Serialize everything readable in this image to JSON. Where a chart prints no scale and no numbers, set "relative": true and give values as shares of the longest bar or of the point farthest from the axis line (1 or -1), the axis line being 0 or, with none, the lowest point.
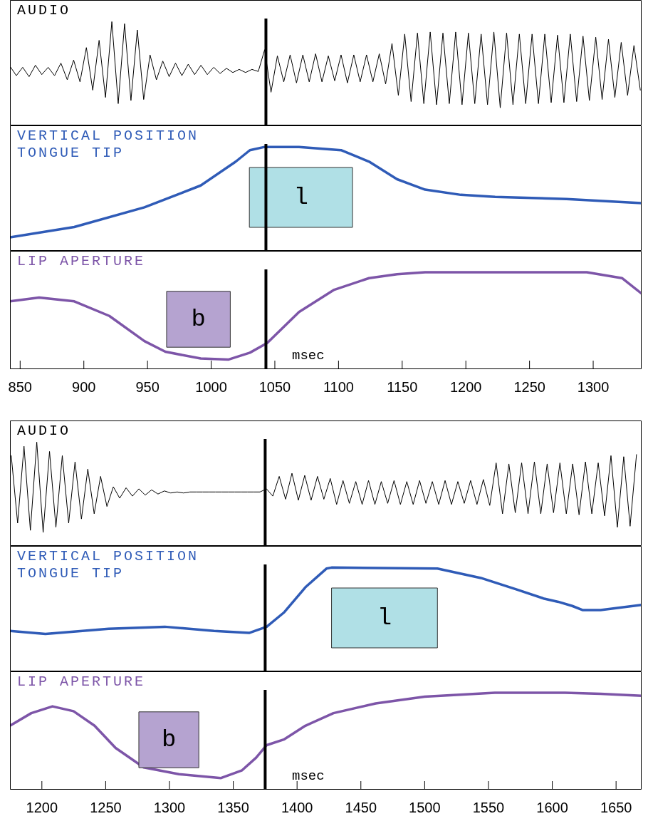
{
  "chart_data": [
    {
      "type": "line",
      "title": "AUDIO",
      "relative": true,
      "xlim": [
        842,
        1338
      ],
      "tick_labels": false,
      "x": [
        842,
        847,
        852,
        857,
        862,
        867,
        872,
        877,
        882,
        887,
        892,
        897,
        902,
        907,
        912,
        917,
        922,
        927,
        932,
        937,
        942,
        947,
        952,
        957,
        962,
        967,
        972,
        977,
        982,
        987,
        992,
        997,
        1002,
        1007,
        1012,
        1017,
        1022,
        1027,
        1032,
        1037,
        1042,
        1047,
        1052,
        1057,
        1062,
        1067,
        1072,
        1077,
        1082,
        1087,
        1092,
        1097,
        1102,
        1107,
        1112,
        1117,
        1122,
        1127,
        1132,
        1137,
        1142,
        1147,
        1152,
        1157,
        1162,
        1167,
        1172,
        1177,
        1182,
        1187,
        1192,
        1197,
        1202,
        1207,
        1212,
        1217,
        1222,
        1227,
        1232,
        1237,
        1242,
        1247,
        1252,
        1257,
        1262,
        1267,
        1272,
        1277,
        1282,
        1287,
        1292,
        1297,
        1302,
        1307,
        1312,
        1317,
        1322,
        1327,
        1332,
        1337
      ],
      "series": [
        {
          "color": "#000000",
          "values": [
            0.57,
            0.48,
            0.56,
            0.47,
            0.58,
            0.49,
            0.56,
            0.48,
            0.6,
            0.44,
            0.63,
            0.42,
            0.75,
            0.34,
            0.82,
            0.27,
            1,
            0.21,
            0.98,
            0.24,
            0.92,
            0.25,
            0.68,
            0.44,
            0.62,
            0.47,
            0.6,
            0.48,
            0.59,
            0.49,
            0.58,
            0.49,
            0.56,
            0.5,
            0.55,
            0.51,
            0.54,
            0.51,
            0.54,
            0.52,
            0.73,
            0.32,
            0.67,
            0.42,
            0.68,
            0.41,
            0.68,
            0.42,
            0.69,
            0.42,
            0.67,
            0.43,
            0.68,
            0.41,
            0.68,
            0.42,
            0.68,
            0.42,
            0.69,
            0.4,
            0.79,
            0.29,
            0.88,
            0.23,
            0.89,
            0.21,
            0.9,
            0.2,
            0.89,
            0.21,
            0.9,
            0.2,
            0.89,
            0.21,
            0.88,
            0.2,
            0.9,
            0.17,
            0.89,
            0.2,
            0.88,
            0.21,
            0.88,
            0.21,
            0.88,
            0.22,
            0.87,
            0.22,
            0.88,
            0.23,
            0.86,
            0.24,
            0.85,
            0.25,
            0.83,
            0.27,
            0.8,
            0.29,
            0.77,
            0.34
          ]
        }
      ],
      "ref_lines": [
        {
          "axis": "x",
          "value": 1043,
          "color": "#000000"
        }
      ]
    },
    {
      "type": "line",
      "title": "VERTICAL POSITION TONGUE TIP",
      "relative": true,
      "xlim": [
        842,
        1338
      ],
      "tick_labels": false,
      "x": [
        842,
        892.5,
        947.6,
        991.8,
        1019.3,
        1030.4,
        1041.4,
        1069,
        1102,
        1124,
        1146,
        1168,
        1196,
        1223,
        1279,
        1338
      ],
      "series": [
        {
          "color": "#2f5bb7",
          "values": [
            0.13,
            0.23,
            0.42,
            0.63,
            0.86,
            0.97,
            1,
            1,
            0.97,
            0.86,
            0.69,
            0.59,
            0.54,
            0.52,
            0.5,
            0.46
          ]
        }
      ],
      "bands": [
        {
          "axis": "x",
          "from": 1030,
          "to": 1111,
          "label": "l",
          "color": "#b0e0e6"
        }
      ],
      "ref_lines": [
        {
          "axis": "x",
          "value": 1043,
          "color": "#000000"
        }
      ]
    },
    {
      "type": "line",
      "title": "LIP APERTURE",
      "xlabel": "msec",
      "relative": true,
      "xlim": [
        842,
        1338
      ],
      "xticks": [
        850,
        900,
        950,
        1000,
        1050,
        1100,
        1150,
        1200,
        1250,
        1300
      ],
      "tick_labels": "x",
      "x": [
        842,
        864.9,
        892.5,
        920,
        947.6,
        964,
        991.8,
        1013.8,
        1030.4,
        1044,
        1069,
        1096.6,
        1124,
        1146,
        1168,
        1223,
        1295,
        1322.6,
        1338
      ],
      "series": [
        {
          "color": "#7d55a8",
          "values": [
            0.7,
            0.74,
            0.7,
            0.55,
            0.29,
            0.18,
            0.11,
            0.1,
            0.17,
            0.27,
            0.59,
            0.82,
            0.94,
            0.98,
            1,
            1,
            1,
            0.94,
            0.78
          ]
        }
      ],
      "bands": [
        {
          "axis": "x",
          "from": 965,
          "to": 1015,
          "label": "b",
          "color": "#b5a3d0"
        }
      ],
      "ref_lines": [
        {
          "axis": "x",
          "value": 1043,
          "color": "#000000"
        }
      ]
    },
    {
      "type": "line",
      "title": "AUDIO",
      "relative": true,
      "xlim": [
        1175,
        1670
      ],
      "tick_labels": false,
      "x": [
        1176,
        1181,
        1186,
        1191,
        1196,
        1201,
        1206,
        1211,
        1216,
        1221,
        1226,
        1231,
        1236,
        1241,
        1246,
        1251,
        1256,
        1261,
        1266,
        1271,
        1276,
        1281,
        1286,
        1291,
        1296,
        1301,
        1306,
        1311,
        1316,
        1321,
        1326,
        1331,
        1336,
        1341,
        1346,
        1351,
        1356,
        1361,
        1366,
        1371,
        1376,
        1381,
        1386,
        1391,
        1396,
        1401,
        1406,
        1411,
        1416,
        1421,
        1426,
        1431,
        1436,
        1441,
        1446,
        1451,
        1456,
        1461,
        1466,
        1471,
        1476,
        1481,
        1486,
        1491,
        1496,
        1501,
        1506,
        1511,
        1516,
        1521,
        1526,
        1531,
        1536,
        1541,
        1546,
        1551,
        1556,
        1561,
        1566,
        1571,
        1576,
        1581,
        1586,
        1591,
        1596,
        1601,
        1606,
        1611,
        1616,
        1621,
        1626,
        1631,
        1636,
        1641,
        1646,
        1651,
        1656,
        1661,
        1666
      ],
      "series": [
        {
          "color": "#000000",
          "values": [
            0.87,
            0.22,
            0.96,
            0.15,
            1,
            0.13,
            0.91,
            0.18,
            0.87,
            0.22,
            0.81,
            0.26,
            0.74,
            0.31,
            0.67,
            0.38,
            0.57,
            0.46,
            0.56,
            0.48,
            0.55,
            0.49,
            0.54,
            0.5,
            0.53,
            0.51,
            0.52,
            0.51,
            0.52,
            0.52,
            0.52,
            0.52,
            0.52,
            0.52,
            0.52,
            0.52,
            0.52,
            0.52,
            0.52,
            0.52,
            0.55,
            0.48,
            0.67,
            0.45,
            0.7,
            0.44,
            0.68,
            0.44,
            0.67,
            0.45,
            0.65,
            0.4,
            0.63,
            0.41,
            0.62,
            0.4,
            0.63,
            0.4,
            0.62,
            0.41,
            0.63,
            0.4,
            0.62,
            0.4,
            0.63,
            0.41,
            0.62,
            0.4,
            0.63,
            0.4,
            0.62,
            0.41,
            0.63,
            0.4,
            0.64,
            0.39,
            0.8,
            0.31,
            0.79,
            0.32,
            0.8,
            0.31,
            0.81,
            0.31,
            0.79,
            0.32,
            0.8,
            0.31,
            0.79,
            0.3,
            0.81,
            0.31,
            0.8,
            0.29,
            0.87,
            0.18,
            0.86,
            0.19,
            0.88
          ]
        }
      ],
      "ref_lines": [
        {
          "axis": "x",
          "value": 1375,
          "color": "#000000"
        }
      ]
    },
    {
      "type": "line",
      "title": "VERTICAL POSITION TONGUE TIP",
      "relative": true,
      "xlim": [
        1175,
        1670
      ],
      "tick_labels": false,
      "x": [
        1175,
        1202.8,
        1252.3,
        1296.4,
        1334.9,
        1362.4,
        1376.2,
        1390,
        1406.5,
        1423,
        1427,
        1510,
        1544,
        1571.7,
        1593.7,
        1604.7,
        1615.7,
        1624,
        1637.8,
        1670
      ],
      "series": [
        {
          "color": "#2f5bb7",
          "values": [
            0.39,
            0.36,
            0.41,
            0.43,
            0.39,
            0.37,
            0.43,
            0.57,
            0.81,
            0.99,
            1,
            0.99,
            0.9,
            0.79,
            0.7,
            0.67,
            0.63,
            0.59,
            0.59,
            0.64
          ]
        }
      ],
      "bands": [
        {
          "axis": "x",
          "from": 1427,
          "to": 1510,
          "label": "l",
          "color": "#b0e0e6"
        }
      ],
      "ref_lines": [
        {
          "axis": "x",
          "value": 1375,
          "color": "#000000"
        }
      ]
    },
    {
      "type": "line",
      "title": "LIP APERTURE",
      "xlabel": "msec",
      "relative": true,
      "xlim": [
        1175,
        1670
      ],
      "xticks": [
        1200,
        1250,
        1300,
        1350,
        1400,
        1450,
        1500,
        1550,
        1600,
        1650
      ],
      "tick_labels": "x",
      "x": [
        1175,
        1191.7,
        1208.3,
        1224.8,
        1241.3,
        1257.8,
        1279.8,
        1307.4,
        1340.4,
        1356.9,
        1367.9,
        1376.2,
        1390,
        1406.5,
        1428.5,
        1461.6,
        1500,
        1555,
        1610,
        1637.8,
        1670
      ],
      "series": [
        {
          "color": "#7d55a8",
          "values": [
            0.66,
            0.79,
            0.86,
            0.81,
            0.66,
            0.43,
            0.23,
            0.16,
            0.12,
            0.2,
            0.33,
            0.46,
            0.52,
            0.66,
            0.79,
            0.89,
            0.96,
            1,
            1,
            0.99,
            0.97
          ]
        }
      ],
      "bands": [
        {
          "axis": "x",
          "from": 1276,
          "to": 1323,
          "label": "b",
          "color": "#b5a3d0"
        }
      ],
      "ref_lines": [
        {
          "axis": "x",
          "value": 1375,
          "color": "#000000"
        }
      ]
    }
  ]
}
